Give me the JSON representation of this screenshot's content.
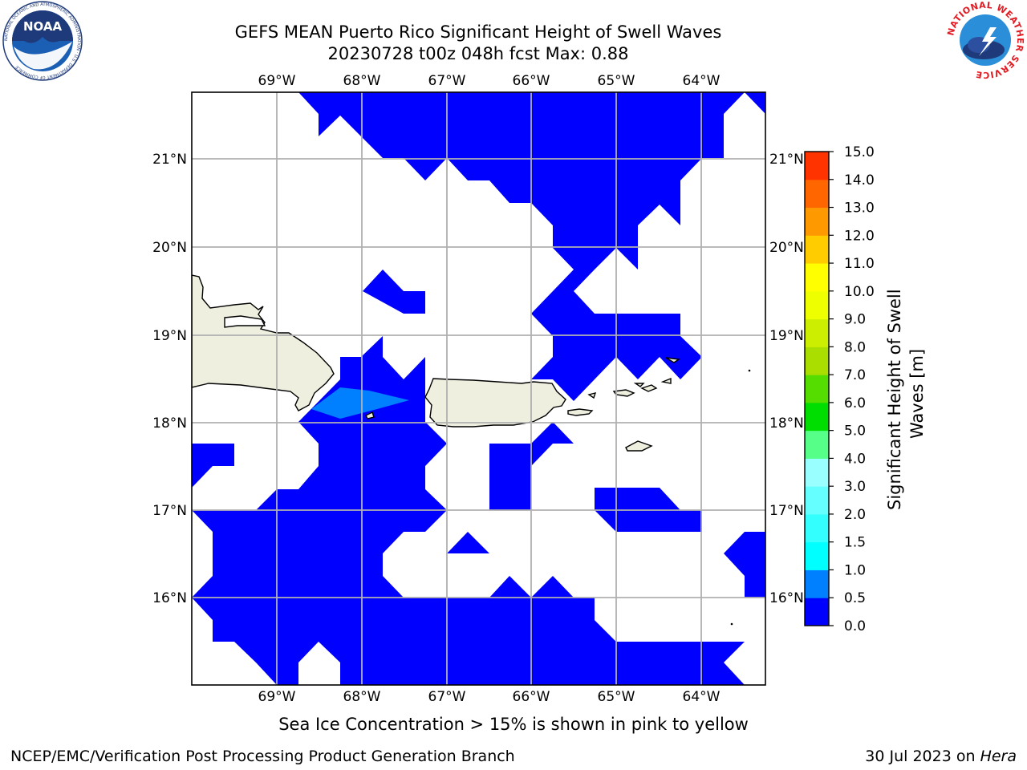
{
  "title": {
    "line1": "GEFS MEAN Puerto Rico Significant Height of Swell Waves",
    "line2": "20230728 t00z 048h fcst   Max: 0.88"
  },
  "logos": {
    "noaa": {
      "text": "NOAA",
      "ring": "NATIONAL OCEANIC AND ATMOSPHERIC ADMINISTRATION · U.S. DEPARTMENT OF COMMERCE"
    },
    "nws": {
      "ring": "NATIONAL WEATHER SERVICE"
    }
  },
  "map": {
    "lon_labels": [
      "69°W",
      "68°W",
      "67°W",
      "66°W",
      "65°W",
      "64°W"
    ],
    "lat_labels": [
      "21°N",
      "20°N",
      "19°N",
      "18°N",
      "17°N",
      "16°N"
    ],
    "colors": {
      "swell_0_05": "#0000ff",
      "swell_05_1": "#0080ff",
      "land": "#efefdf",
      "grid": "#b0b0b0"
    }
  },
  "colorbar": {
    "title_line1": "Significant Height of Swell",
    "title_line2": "Waves [m]",
    "ticks": [
      "0.0",
      "0.5",
      "1.0",
      "1.5",
      "2.0",
      "3.0",
      "4.0",
      "5.0",
      "6.0",
      "7.0",
      "8.0",
      "9.0",
      "10.0",
      "11.0",
      "12.0",
      "13.0",
      "14.0",
      "15.0"
    ],
    "colors": [
      "#0000ff",
      "#0080ff",
      "#00ffff",
      "#33ffff",
      "#66ffff",
      "#99ffff",
      "#55ff88",
      "#00dd00",
      "#55dd00",
      "#aadd00",
      "#ccee00",
      "#eeff00",
      "#ffff00",
      "#ffcc00",
      "#ff9900",
      "#ff6600",
      "#ff3300",
      "#ff0000"
    ]
  },
  "footer": {
    "note": "Sea Ice Concentration > 15% is shown in pink to yellow",
    "left": "NCEP/EMC/Verification Post Processing Product Generation Branch",
    "right_date": "30 Jul 2023 on",
    "right_host": "Hera"
  }
}
